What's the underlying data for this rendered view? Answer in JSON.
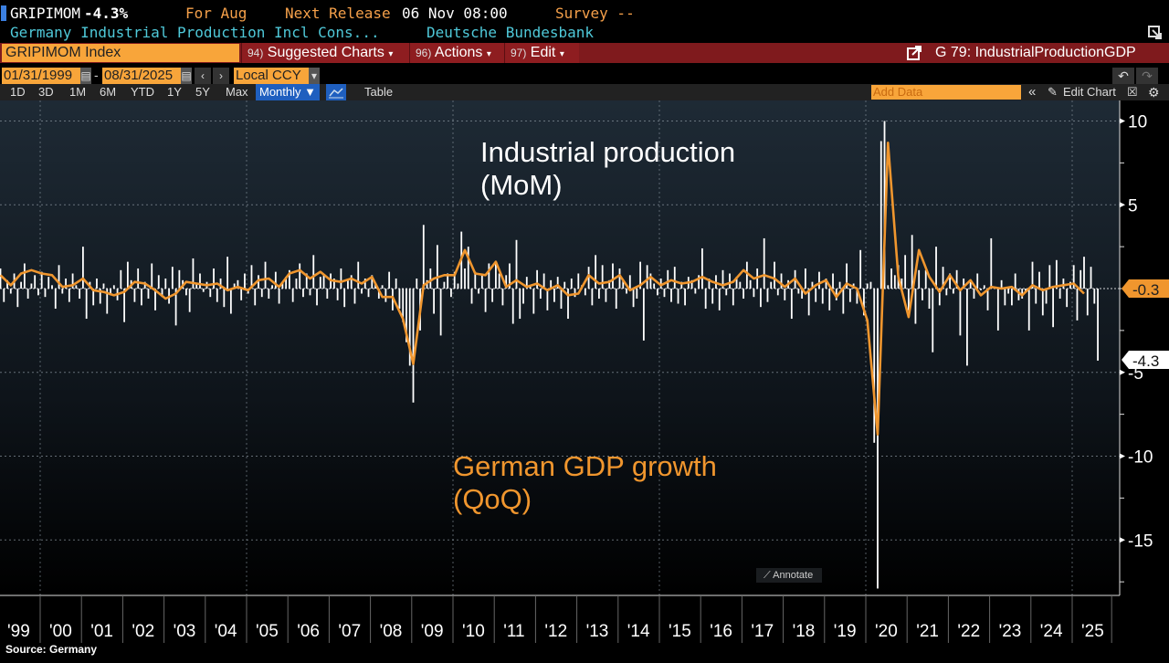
{
  "header": {
    "ticker": "GRIPIMOM",
    "last_change": "-4.3%",
    "period_label": "For Aug",
    "next_release_label": "Next Release",
    "next_release_value": "06 Nov 08:00",
    "survey_label": "Survey --",
    "description": "Germany Industrial Production Incl Cons...",
    "source_org": "Deutsche Bundesbank"
  },
  "menubar": {
    "security": "GRIPIMOM Index",
    "items": [
      {
        "num": "94)",
        "label": "Suggested Charts"
      },
      {
        "num": "96)",
        "label": "Actions"
      },
      {
        "num": "97)",
        "label": "Edit"
      }
    ],
    "chart_name": "G 79: IndustrialProductionGDP"
  },
  "range": {
    "start": "01/31/1999",
    "sep": "-",
    "end": "08/31/2025",
    "currency": "Local CCY"
  },
  "periods": [
    "1D",
    "3D",
    "1M",
    "6M",
    "YTD",
    "1Y",
    "5Y",
    "Max"
  ],
  "toolbar": {
    "frequency": "Monthly ▼",
    "table": "Table",
    "add_data_placeholder": "Add Data",
    "edit_chart": "Edit Chart",
    "collapse": "«"
  },
  "annotations": {
    "ip_line1": "Industrial production",
    "ip_line2": "(MoM)",
    "gdp_line1": "German GDP growth",
    "gdp_line2": "(QoQ)",
    "annotate_button": "Annotate"
  },
  "footer": {
    "source": "Source: Germany"
  },
  "colors": {
    "bars": "#ffffff",
    "gdp_line": "#f0962e",
    "menubar": "#7f1a1d",
    "input": "#f8a53a",
    "accent_blue": "#1f5fbf"
  },
  "chart_data": {
    "type": "bar+line",
    "xlim": [
      "1999-01",
      "2025-08"
    ],
    "ylim": [
      -18,
      11
    ],
    "y_ticks": [
      10,
      5,
      -5,
      -10,
      -15
    ],
    "x_tick_labels": [
      "'99",
      "'00",
      "'01",
      "'02",
      "'03",
      "'04",
      "'05",
      "'06",
      "'07",
      "'08",
      "'09",
      "'10",
      "'11",
      "'12",
      "'13",
      "'14",
      "'15",
      "'16",
      "'17",
      "'18",
      "'19",
      "'20",
      "'21",
      "'22",
      "'23",
      "'24",
      "'25"
    ],
    "grid": true,
    "last_value_labels": {
      "gdp": "-0.3",
      "ip": "-4.3"
    },
    "series": [
      {
        "type": "bar",
        "frequency": "monthly",
        "color": "#ffffff",
        "values_by_year": {
          "1999": [
            1.2,
            -0.8,
            0.5,
            -0.3,
            0.9,
            -1.1,
            0.4,
            1.5,
            -0.6,
            0.3,
            0.8,
            -0.4
          ],
          "2000": [
            1.0,
            -0.5,
            0.7,
            0.2,
            -1.2,
            1.4,
            -0.3,
            0.6,
            -0.8,
            0.9,
            0.2,
            -0.6
          ],
          "2001": [
            2.5,
            -1.8,
            0.4,
            -1.0,
            0.6,
            -0.9,
            0.3,
            -1.5,
            -0.4,
            0.2,
            -0.7,
            1.1
          ],
          "2002": [
            -2.0,
            1.6,
            0.5,
            -0.8,
            1.2,
            -1.0,
            0.4,
            -0.6,
            1.5,
            -1.3,
            0.8,
            -0.5
          ],
          "2003": [
            0.6,
            -0.9,
            1.3,
            -2.2,
            1.1,
            0.5,
            -0.4,
            -1.4,
            1.8,
            0.3,
            0.9,
            -0.2
          ],
          "2004": [
            0.4,
            -0.5,
            1.2,
            -0.8,
            0.6,
            -1.1,
            1.9,
            -1.5,
            0.3,
            0.5,
            -0.7,
            0.9
          ],
          "2005": [
            -0.3,
            1.4,
            -1.0,
            0.8,
            -0.5,
            1.6,
            -0.6,
            0.2,
            1.0,
            -0.9,
            0.4,
            0.7
          ],
          "2006": [
            1.1,
            -0.8,
            0.6,
            1.5,
            -0.5,
            0.9,
            -0.4,
            2.0,
            -1.0,
            0.7,
            0.8,
            -0.6
          ],
          "2007": [
            0.9,
            0.6,
            -0.7,
            1.2,
            -1.1,
            0.5,
            0.8,
            -0.9,
            1.6,
            -0.3,
            0.6,
            -0.5
          ],
          "2008": [
            0.8,
            0.3,
            -0.6,
            0.2,
            -0.8,
            1.0,
            -1.3,
            0.6,
            -1.2,
            -2.0,
            -3.2,
            -4.6
          ],
          "2009": [
            -6.8,
            0.6,
            -2.5,
            3.8,
            0.5,
            1.2,
            -1.5,
            2.6,
            -2.8,
            0.4,
            0.9,
            -0.5
          ],
          "2010": [
            1.0,
            0.3,
            3.4,
            1.2,
            2.5,
            -0.9,
            1.0,
            -0.3,
            0.9,
            -1.4,
            1.5,
            -0.8
          ],
          "2011": [
            1.6,
            0.9,
            -1.0,
            0.8,
            1.5,
            -2.1,
            2.9,
            -1.8,
            -0.9,
            0.7,
            0.2,
            -1.5
          ],
          "2012": [
            1.1,
            -0.6,
            0.9,
            -1.3,
            0.5,
            -0.8,
            0.7,
            -1.2,
            0.4,
            -1.8,
            0.6,
            -0.5
          ],
          "2013": [
            0.9,
            0.2,
            -0.4,
            1.3,
            -1.0,
            2.0,
            -0.6,
            1.4,
            -0.8,
            0.5,
            1.5,
            -1.2
          ],
          "2014": [
            1.2,
            0.5,
            -0.3,
            0.8,
            -1.1,
            -0.6,
            1.6,
            -3.1,
            1.4,
            0.9,
            0.3,
            -0.4
          ],
          "2015": [
            0.6,
            -0.5,
            1.1,
            -0.8,
            1.3,
            -0.9,
            0.4,
            -1.0,
            0.7,
            0.5,
            -0.3,
            0.8
          ],
          "2016": [
            2.4,
            -1.2,
            0.6,
            -0.9,
            0.8,
            -1.3,
            1.1,
            -0.4,
            0.9,
            -1.0,
            0.7,
            0.4
          ],
          "2017": [
            -0.6,
            1.6,
            0.5,
            -0.5,
            1.2,
            -1.1,
            3.0,
            -0.8,
            0.4,
            1.6,
            -0.4,
            0.9
          ],
          "2018": [
            -0.7,
            0.5,
            -1.8,
            1.1,
            -0.3,
            -0.6,
            1.2,
            -1.6,
            0.4,
            -0.8,
            1.0,
            -0.9
          ],
          "2019": [
            0.6,
            -1.3,
            0.9,
            -0.7,
            0.4,
            -1.5,
            1.5,
            -0.8,
            0.3,
            -0.9,
            2.3,
            -1.6
          ],
          "2020": [
            0.3,
            0.4,
            -9.2,
            -17.9,
            8.8,
            10.0,
            0.2,
            1.2,
            0.8,
            1.4,
            0.6,
            2.0
          ],
          "2021": [
            -1.3,
            3.2,
            -2.1,
            1.1,
            -0.7,
            1.1,
            -1.2,
            -3.8,
            2.5,
            -1.0,
            1.3,
            -0.4
          ],
          "2022": [
            0.9,
            -0.3,
            1.1,
            -2.8,
            0.6,
            -4.6,
            0.4,
            -0.6,
            0.9,
            -0.1,
            0.2,
            -1.3
          ],
          "2023": [
            3.0,
            0.1,
            -2.5,
            0.5,
            -1.0,
            -0.3,
            -1.0,
            0.9,
            -0.7,
            -0.6,
            -0.2,
            -2.5
          ],
          "2024": [
            1.6,
            -0.9,
            1.0,
            -1.6,
            -0.9,
            1.4,
            -2.3,
            1.7,
            -0.6,
            0.6,
            -1.1,
            0.4
          ],
          "2025": [
            1.4,
            -1.9,
            1.1,
            1.9,
            -1.6,
            1.3,
            -0.9,
            -4.3
          ]
        }
      },
      {
        "type": "line",
        "frequency": "quarterly",
        "color": "#f0962e",
        "values_by_year": {
          "1999": [
            0.8,
            0.2,
            0.9,
            1.1
          ],
          "2000": [
            0.9,
            0.8,
            0.1,
            0.2
          ],
          "2001": [
            0.6,
            -0.1,
            -0.2,
            -0.4
          ],
          "2002": [
            -0.2,
            0.4,
            0.3,
            -0.1
          ],
          "2003": [
            -0.6,
            -0.3,
            0.4,
            0.3
          ],
          "2004": [
            0.2,
            0.3,
            -0.1,
            0.1
          ],
          "2005": [
            -0.1,
            0.5,
            0.6,
            0.1
          ],
          "2006": [
            0.9,
            1.1,
            0.6,
            1.0
          ],
          "2007": [
            0.5,
            0.4,
            0.6,
            0.3
          ],
          "2008": [
            0.7,
            -0.5,
            -0.5,
            -1.8
          ],
          "2009": [
            -4.5,
            0.2,
            0.6,
            0.8
          ],
          "2010": [
            0.8,
            2.3,
            0.9,
            0.8
          ],
          "2011": [
            1.6,
            0.1,
            0.5,
            0.1
          ],
          "2012": [
            0.3,
            -0.1,
            0.2,
            -0.4
          ],
          "2013": [
            -0.3,
            0.8,
            0.3,
            0.4
          ],
          "2014": [
            0.8,
            -0.1,
            0.2,
            0.7
          ],
          "2015": [
            0.2,
            0.5,
            0.3,
            0.4
          ],
          "2016": [
            0.7,
            0.4,
            0.2,
            0.4
          ],
          "2017": [
            1.1,
            0.6,
            0.8,
            0.6
          ],
          "2018": [
            0.1,
            0.6,
            -0.3,
            0.2
          ],
          "2019": [
            0.5,
            -0.5,
            0.3,
            0.0
          ],
          "2020": [
            -1.9,
            -8.7,
            8.7,
            0.7
          ],
          "2021": [
            -1.7,
            2.3,
            0.7,
            -0.2
          ],
          "2022": [
            0.8,
            -0.1,
            0.5,
            -0.4
          ],
          "2023": [
            0.1,
            0.0,
            0.1,
            -0.4
          ],
          "2024": [
            0.2,
            -0.1,
            0.1,
            0.2
          ],
          "2025": [
            0.3,
            -0.3
          ]
        }
      }
    ]
  }
}
